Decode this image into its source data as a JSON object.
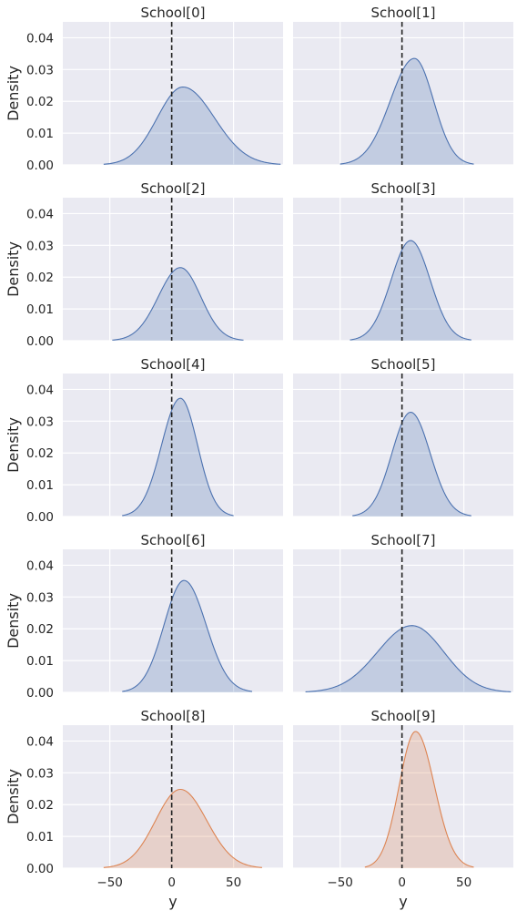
{
  "chart_data": {
    "type": "area",
    "xlabel": "y",
    "ylabel": "Density",
    "xlim": [
      -88,
      90
    ],
    "ylim": [
      0,
      0.045
    ],
    "xticks": [
      -50,
      0,
      50
    ],
    "yticks": [
      0.0,
      0.01,
      0.02,
      0.03,
      0.04
    ],
    "ytick_labels": [
      "0.00",
      "0.01",
      "0.02",
      "0.03",
      "0.04"
    ],
    "grid": true,
    "reference_line_x": 0,
    "colors": {
      "blue": "#4c72b0",
      "orange": "#dd8452",
      "background": "#eaeaf2"
    },
    "panels": [
      {
        "title": "School[0]",
        "color": "blue",
        "peak_x": 9,
        "peak_density": 0.0245,
        "x_range": [
          -55,
          88
        ]
      },
      {
        "title": "School[1]",
        "color": "blue",
        "peak_x": 10,
        "peak_density": 0.0335,
        "x_range": [
          -50,
          58
        ]
      },
      {
        "title": "School[2]",
        "color": "blue",
        "peak_x": 7,
        "peak_density": 0.023,
        "x_range": [
          -48,
          58
        ]
      },
      {
        "title": "School[3]",
        "color": "blue",
        "peak_x": 7,
        "peak_density": 0.0315,
        "x_range": [
          -42,
          56
        ]
      },
      {
        "title": "School[4]",
        "color": "blue",
        "peak_x": 7,
        "peak_density": 0.0372,
        "x_range": [
          -40,
          50
        ]
      },
      {
        "title": "School[5]",
        "color": "blue",
        "peak_x": 7,
        "peak_density": 0.0328,
        "x_range": [
          -40,
          56
        ]
      },
      {
        "title": "School[6]",
        "color": "blue",
        "peak_x": 10,
        "peak_density": 0.0352,
        "x_range": [
          -40,
          65
        ]
      },
      {
        "title": "School[7]",
        "color": "blue",
        "peak_x": 8,
        "peak_density": 0.021,
        "x_range": [
          -78,
          88
        ]
      },
      {
        "title": "School[8]",
        "color": "orange",
        "peak_x": 7,
        "peak_density": 0.0248,
        "x_range": [
          -55,
          73
        ]
      },
      {
        "title": "School[9]",
        "color": "orange",
        "peak_x": 11,
        "peak_density": 0.043,
        "x_range": [
          -30,
          58
        ]
      }
    ]
  }
}
